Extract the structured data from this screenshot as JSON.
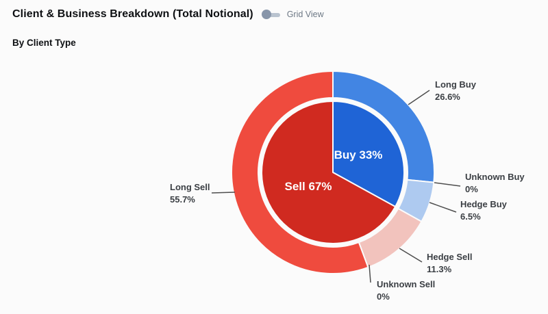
{
  "header": {
    "title": "Client & Business Breakdown (Total Notional)",
    "toggle_label": "Grid View",
    "toggle_state": "off"
  },
  "subtitle": "By Client Type",
  "chart_data": {
    "type": "pie",
    "subtype": "nested-donut",
    "title": "Client & Business Breakdown (Total Notional)",
    "group_by": "By Client Type",
    "start_angle": 0,
    "direction": "clockwise",
    "legend_position": "none",
    "inner_series": {
      "name": "direction-totals",
      "slices": [
        {
          "label": "Buy",
          "value": 33,
          "display": "Buy 33%",
          "color": "#1f64d6"
        },
        {
          "label": "Sell",
          "value": 67,
          "display": "Sell 67%",
          "color": "#d02a20"
        }
      ]
    },
    "outer_series": {
      "name": "client-type-breakdown",
      "slices": [
        {
          "label": "Long Buy",
          "value": 26.6,
          "display": "26.6%",
          "color": "#4285e3"
        },
        {
          "label": "Unknown Buy",
          "value": 0,
          "display": "0%",
          "color": "#7fabec"
        },
        {
          "label": "Hedge Buy",
          "value": 6.5,
          "display": "6.5%",
          "color": "#aecaf0"
        },
        {
          "label": "Hedge Sell",
          "value": 11.3,
          "display": "11.3%",
          "color": "#f2c3bd"
        },
        {
          "label": "Unknown Sell",
          "value": 0,
          "display": "0%",
          "color": "#f4988f"
        },
        {
          "label": "Long Sell",
          "value": 55.7,
          "display": "55.7%",
          "color": "#ef4b3e"
        }
      ]
    }
  }
}
